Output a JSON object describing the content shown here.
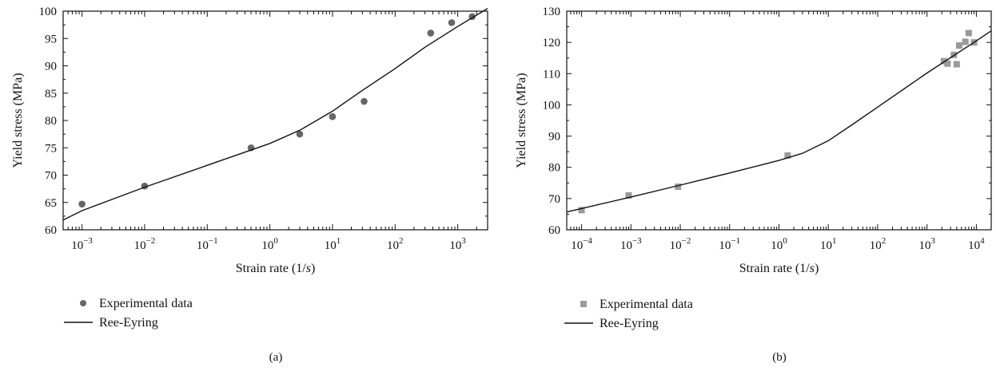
{
  "chart_data": [
    {
      "type": "scatter",
      "panel_label": "(a)",
      "xlabel_main": "Strain rate (1/",
      "xlabel_unit": "s",
      "xlabel_end": ")",
      "ylabel": "Yield stress (MPa)",
      "x_scale": "log",
      "xlim": [
        0.0005,
        3000
      ],
      "ylim": [
        60,
        100
      ],
      "x_ticks": [
        {
          "value": 0.001,
          "exp": "−3"
        },
        {
          "value": 0.01,
          "exp": "−2"
        },
        {
          "value": 0.1,
          "exp": "−1"
        },
        {
          "value": 1,
          "exp": "0"
        },
        {
          "value": 10,
          "exp": "1"
        },
        {
          "value": 100,
          "exp": "2"
        },
        {
          "value": 1000,
          "exp": "3"
        }
      ],
      "y_ticks": [
        60,
        65,
        70,
        75,
        80,
        85,
        90,
        95,
        100
      ],
      "legend_position": "bottom-left",
      "series": [
        {
          "name": "Experimental data",
          "kind": "points",
          "marker": "circle",
          "color": "#666666",
          "points": [
            [
              0.001,
              64.7
            ],
            [
              0.01,
              68.0
            ],
            [
              0.5,
              75.0
            ],
            [
              3,
              77.5
            ],
            [
              10,
              80.7
            ],
            [
              32,
              83.5
            ],
            [
              370,
              96.0
            ],
            [
              800,
              97.9
            ],
            [
              1700,
              99.0
            ]
          ]
        },
        {
          "name": "Ree-Eyring",
          "kind": "line",
          "color": "#111111",
          "points": [
            [
              0.0005,
              61.8
            ],
            [
              0.001,
              63.5
            ],
            [
              0.01,
              67.8
            ],
            [
              0.1,
              71.8
            ],
            [
              1,
              75.8
            ],
            [
              3,
              78.2
            ],
            [
              10,
              81.7
            ],
            [
              30,
              85.5
            ],
            [
              100,
              89.5
            ],
            [
              300,
              93.4
            ],
            [
              1000,
              97.2
            ],
            [
              3000,
              100.5
            ]
          ]
        }
      ]
    },
    {
      "type": "scatter",
      "panel_label": "(b)",
      "xlabel_main": "Strain rate (1/",
      "xlabel_unit": "s",
      "xlabel_end": ")",
      "ylabel": "Yield stress (MPa)",
      "x_scale": "log",
      "xlim": [
        5e-05,
        20000
      ],
      "ylim": [
        60,
        130
      ],
      "x_ticks": [
        {
          "value": 0.0001,
          "exp": "−4"
        },
        {
          "value": 0.001,
          "exp": "−3"
        },
        {
          "value": 0.01,
          "exp": "−2"
        },
        {
          "value": 0.1,
          "exp": "−1"
        },
        {
          "value": 1,
          "exp": "0"
        },
        {
          "value": 10,
          "exp": "1"
        },
        {
          "value": 100,
          "exp": "2"
        },
        {
          "value": 1000,
          "exp": "3"
        },
        {
          "value": 10000,
          "exp": "4"
        }
      ],
      "y_ticks": [
        60,
        70,
        80,
        90,
        100,
        110,
        120,
        130
      ],
      "legend_position": "bottom-left",
      "series": [
        {
          "name": "Experimental data",
          "kind": "points",
          "marker": "square",
          "color": "#9a9a9a",
          "points": [
            [
              0.0001,
              66.3
            ],
            [
              0.0009,
              71.0
            ],
            [
              0.009,
              73.8
            ],
            [
              1.5,
              83.8
            ],
            [
              2200,
              114.0
            ],
            [
              2600,
              113.2
            ],
            [
              3500,
              116.0
            ],
            [
              4000,
              113.0
            ],
            [
              4500,
              119.0
            ],
            [
              6000,
              120.2
            ],
            [
              7000,
              123.0
            ],
            [
              9000,
              120.0
            ]
          ]
        },
        {
          "name": "Ree-Eyring",
          "kind": "line",
          "color": "#111111",
          "points": [
            [
              5e-05,
              65.7
            ],
            [
              0.001,
              70.5
            ],
            [
              0.01,
              74.3
            ],
            [
              0.1,
              78.2
            ],
            [
              1,
              82.2
            ],
            [
              3,
              84.5
            ],
            [
              10,
              88.5
            ],
            [
              30,
              93.6
            ],
            [
              100,
              99.3
            ],
            [
              1000,
              110.2
            ],
            [
              10000,
              120.5
            ],
            [
              20000,
              123.7
            ]
          ]
        }
      ]
    }
  ]
}
